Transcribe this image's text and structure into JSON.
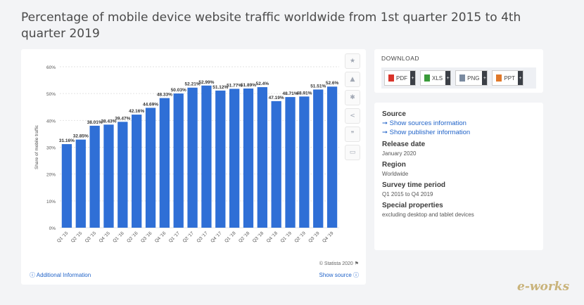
{
  "title": "Percentage of mobile device website traffic worldwide from 1st quarter 2015 to 4th quarter 2019",
  "chart_data": {
    "type": "bar",
    "categories": [
      "Q1 '15",
      "Q2 '15",
      "Q3 '15",
      "Q4 '15",
      "Q1 '16",
      "Q2 '16",
      "Q3 '16",
      "Q4 '16",
      "Q1 '17",
      "Q2 '17",
      "Q3 '17",
      "Q4 '17",
      "Q1 '18",
      "Q2 '18",
      "Q3 '18",
      "Q4 '18",
      "Q1 '19",
      "Q2 '19",
      "Q3 '19",
      "Q4 '19"
    ],
    "values": [
      31.16,
      32.85,
      38.01,
      38.43,
      39.47,
      42.16,
      44.69,
      48.33,
      50.03,
      52.21,
      52.99,
      51.12,
      51.77,
      51.89,
      52.4,
      47.19,
      48.71,
      48.91,
      51.51,
      52.6
    ],
    "labels": [
      "31.16%",
      "32.85%",
      "38.01%",
      "38.43%",
      "39.47%",
      "42.16%",
      "44.69%",
      "48.33%",
      "50.03%",
      "52.21%",
      "52.99%",
      "51.12%",
      "51.77%",
      "51.89%",
      "52.4%",
      "47.19%",
      "48.71%",
      "48.91%",
      "51.51%",
      "52.6%"
    ],
    "ylabel": "Share of mobile traffic",
    "ylim": [
      0,
      60
    ],
    "yticks": [
      "0%",
      "10%",
      "20%",
      "30%",
      "40%",
      "50%",
      "60%"
    ],
    "color": "#2f6fd6",
    "grid": true
  },
  "chart_footer": {
    "copyright": "© Statista 2020",
    "additional_info": "Additional Information",
    "show_source": "Show source"
  },
  "tools": [
    "star-icon",
    "bell-icon",
    "gear-icon",
    "share-icon",
    "quote-icon",
    "print-icon"
  ],
  "download": {
    "title": "DOWNLOAD",
    "buttons": [
      {
        "label": "PDF",
        "color": "#d9342b"
      },
      {
        "label": "XLS",
        "color": "#3a9b3a"
      },
      {
        "label": "PNG",
        "color": "#7a8aa0"
      },
      {
        "label": "PPT",
        "color": "#e0782a"
      }
    ]
  },
  "info": {
    "source_heading": "Source",
    "show_sources": "Show sources information",
    "show_publisher": "Show publisher information",
    "release_heading": "Release date",
    "release_value": "January 2020",
    "region_heading": "Region",
    "region_value": "Worldwide",
    "survey_heading": "Survey time period",
    "survey_value": "Q1 2015 to Q4 2019",
    "special_heading": "Special properties",
    "special_value": "excluding desktop and tablet devices"
  },
  "watermark": "e-works"
}
